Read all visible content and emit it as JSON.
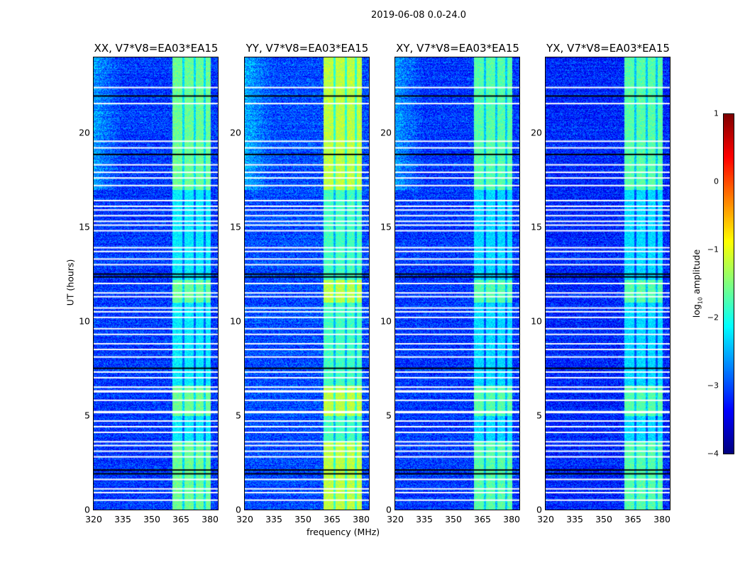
{
  "chart_data": {
    "type": "heatmap",
    "title": "2019-06-08 0.0-24.0",
    "xlabel": "frequency (MHz)",
    "ylabel": "UT (hours)",
    "xlim": [
      320,
      384
    ],
    "ylim": [
      0,
      24
    ],
    "xticks": [
      "320",
      "335",
      "350",
      "365",
      "380"
    ],
    "yticks": [
      "0",
      "5",
      "10",
      "15",
      "20"
    ],
    "panels": [
      {
        "title": "XX, V7*V8=EA03*EA15",
        "band_level": -1.6,
        "quiet_level": -3.1
      },
      {
        "title": "YY, V7*V8=EA03*EA15",
        "band_level": -1.2,
        "quiet_level": -3.0
      },
      {
        "title": "XY, V7*V8=EA03*EA15",
        "band_level": -1.7,
        "quiet_level": -3.1
      },
      {
        "title": "YX, V7*V8=EA03*EA15",
        "band_level": -1.7,
        "quiet_level": -3.2
      }
    ],
    "rfi_band_mhz": [
      360.5,
      380
    ],
    "band_gaps_mhz": [
      366,
      372,
      377
    ],
    "strong_rfi_hours": [
      [
        0,
        3.6
      ],
      [
        5,
        6.6
      ],
      [
        11,
        12.2
      ],
      [
        17,
        24
      ]
    ],
    "flagged_hours": [
      22.4,
      21.55,
      19.55,
      19.2,
      18.3,
      17.9,
      17.6,
      17.2,
      16.4,
      16.1,
      15.9,
      15.6,
      15.3,
      15.1,
      14.8,
      13.9,
      13.7,
      13.3,
      13.0,
      12.0,
      11.5,
      11.3,
      10.7,
      10.5,
      10.2,
      9.6,
      9.3,
      8.8,
      8.5,
      8.1,
      7.3,
      7.0,
      6.5,
      6.3,
      6.25,
      5.8,
      5.2,
      5.15,
      4.7,
      4.4,
      4.1,
      3.6,
      3.4,
      3.1,
      2.8,
      1.6,
      1.1,
      0.9,
      0.5
    ],
    "dark_hours": [
      21.95,
      18.85,
      12.5,
      12.35,
      7.5,
      2.1,
      1.9
    ],
    "colorbar": {
      "label_main": "log",
      "label_sub": "10",
      "label_rest": " amplitude",
      "range": [
        -4,
        1
      ],
      "ticks": [
        "1",
        "0",
        "−1",
        "−2",
        "−3",
        "−4"
      ],
      "colormap": "jet"
    }
  }
}
